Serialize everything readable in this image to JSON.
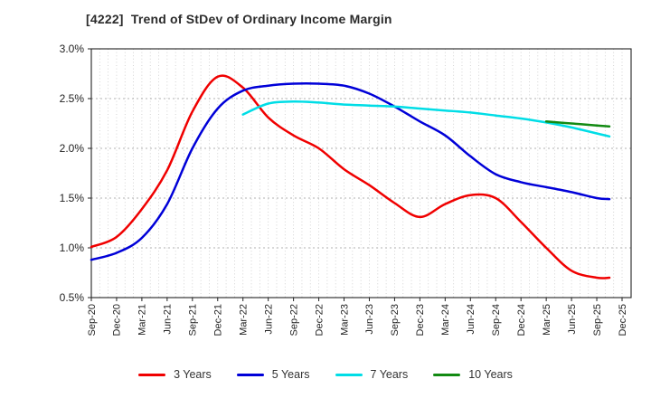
{
  "title": "[4222]  Trend of StDev of Ordinary Income Margin",
  "chart_data": {
    "type": "line",
    "title": "[4222]  Trend of StDev of Ordinary Income Margin",
    "xlabel": "",
    "ylabel": "",
    "y_unit": "%",
    "ylim": [
      0.5,
      3.0
    ],
    "y_ticks": [
      0.5,
      1.0,
      1.5,
      2.0,
      2.5,
      3.0
    ],
    "y_tick_labels": [
      "0.5%",
      "1.0%",
      "1.5%",
      "2.0%",
      "2.5%",
      "3.0%"
    ],
    "x_tick_labels": [
      "Sep-20",
      "Dec-20",
      "Mar-21",
      "Jun-21",
      "Sep-21",
      "Dec-21",
      "Mar-22",
      "Jun-22",
      "Sep-22",
      "Dec-22",
      "Mar-23",
      "Jun-23",
      "Sep-23",
      "Dec-23",
      "Mar-24",
      "Jun-24",
      "Sep-24",
      "Dec-24",
      "Mar-25",
      "Jun-25",
      "Sep-25",
      "Dec-25"
    ],
    "x_months_total": 63,
    "x_quarter_step_months": 3,
    "grid": {
      "vertical": "monthly dotted",
      "horizontal": "every 0.5% dotted",
      "h_gridline_values": [
        1.0,
        1.5,
        2.0,
        2.5
      ]
    },
    "legend_position": "bottom center",
    "series": [
      {
        "name": "3 Years",
        "color": "#f00000",
        "start_month": 0,
        "step_months": 3,
        "values": [
          1.01,
          1.11,
          1.39,
          1.78,
          2.37,
          2.72,
          2.61,
          2.31,
          2.13,
          2.0,
          1.79,
          1.63,
          1.45,
          1.31,
          1.44,
          1.53,
          1.5,
          1.26,
          1.0,
          0.77,
          0.7
        ],
        "tail_month": 61.5,
        "tail_value": 0.7
      },
      {
        "name": "5 Years",
        "color": "#0000d8",
        "start_month": 0,
        "step_months": 3,
        "values": [
          0.88,
          0.95,
          1.1,
          1.44,
          2.0,
          2.4,
          2.58,
          2.63,
          2.65,
          2.65,
          2.63,
          2.55,
          2.42,
          2.27,
          2.13,
          1.92,
          1.74,
          1.66,
          1.61,
          1.56,
          1.5
        ],
        "tail_month": 61.5,
        "tail_value": 1.49
      },
      {
        "name": "7 Years",
        "color": "#00dde6",
        "start_month": 18,
        "step_months": 3,
        "values": [
          2.34,
          2.45,
          2.47,
          2.46,
          2.44,
          2.43,
          2.42,
          2.4,
          2.38,
          2.36,
          2.33,
          2.3,
          2.26,
          2.21,
          2.15
        ],
        "tail_month": 61.5,
        "tail_value": 2.12
      },
      {
        "name": "10 Years",
        "color": "#128a12",
        "start_month": 54,
        "step_months": 3,
        "values": [
          2.27,
          2.25,
          2.23
        ],
        "tail_month": 61.5,
        "tail_value": 2.22
      }
    ],
    "style": {
      "axis_color": "#222222",
      "v_grid_color": "#c9c9c9",
      "h_grid_color": "#999999",
      "tick_label_color": "#222222",
      "title_color": "#2b2b2b"
    }
  }
}
